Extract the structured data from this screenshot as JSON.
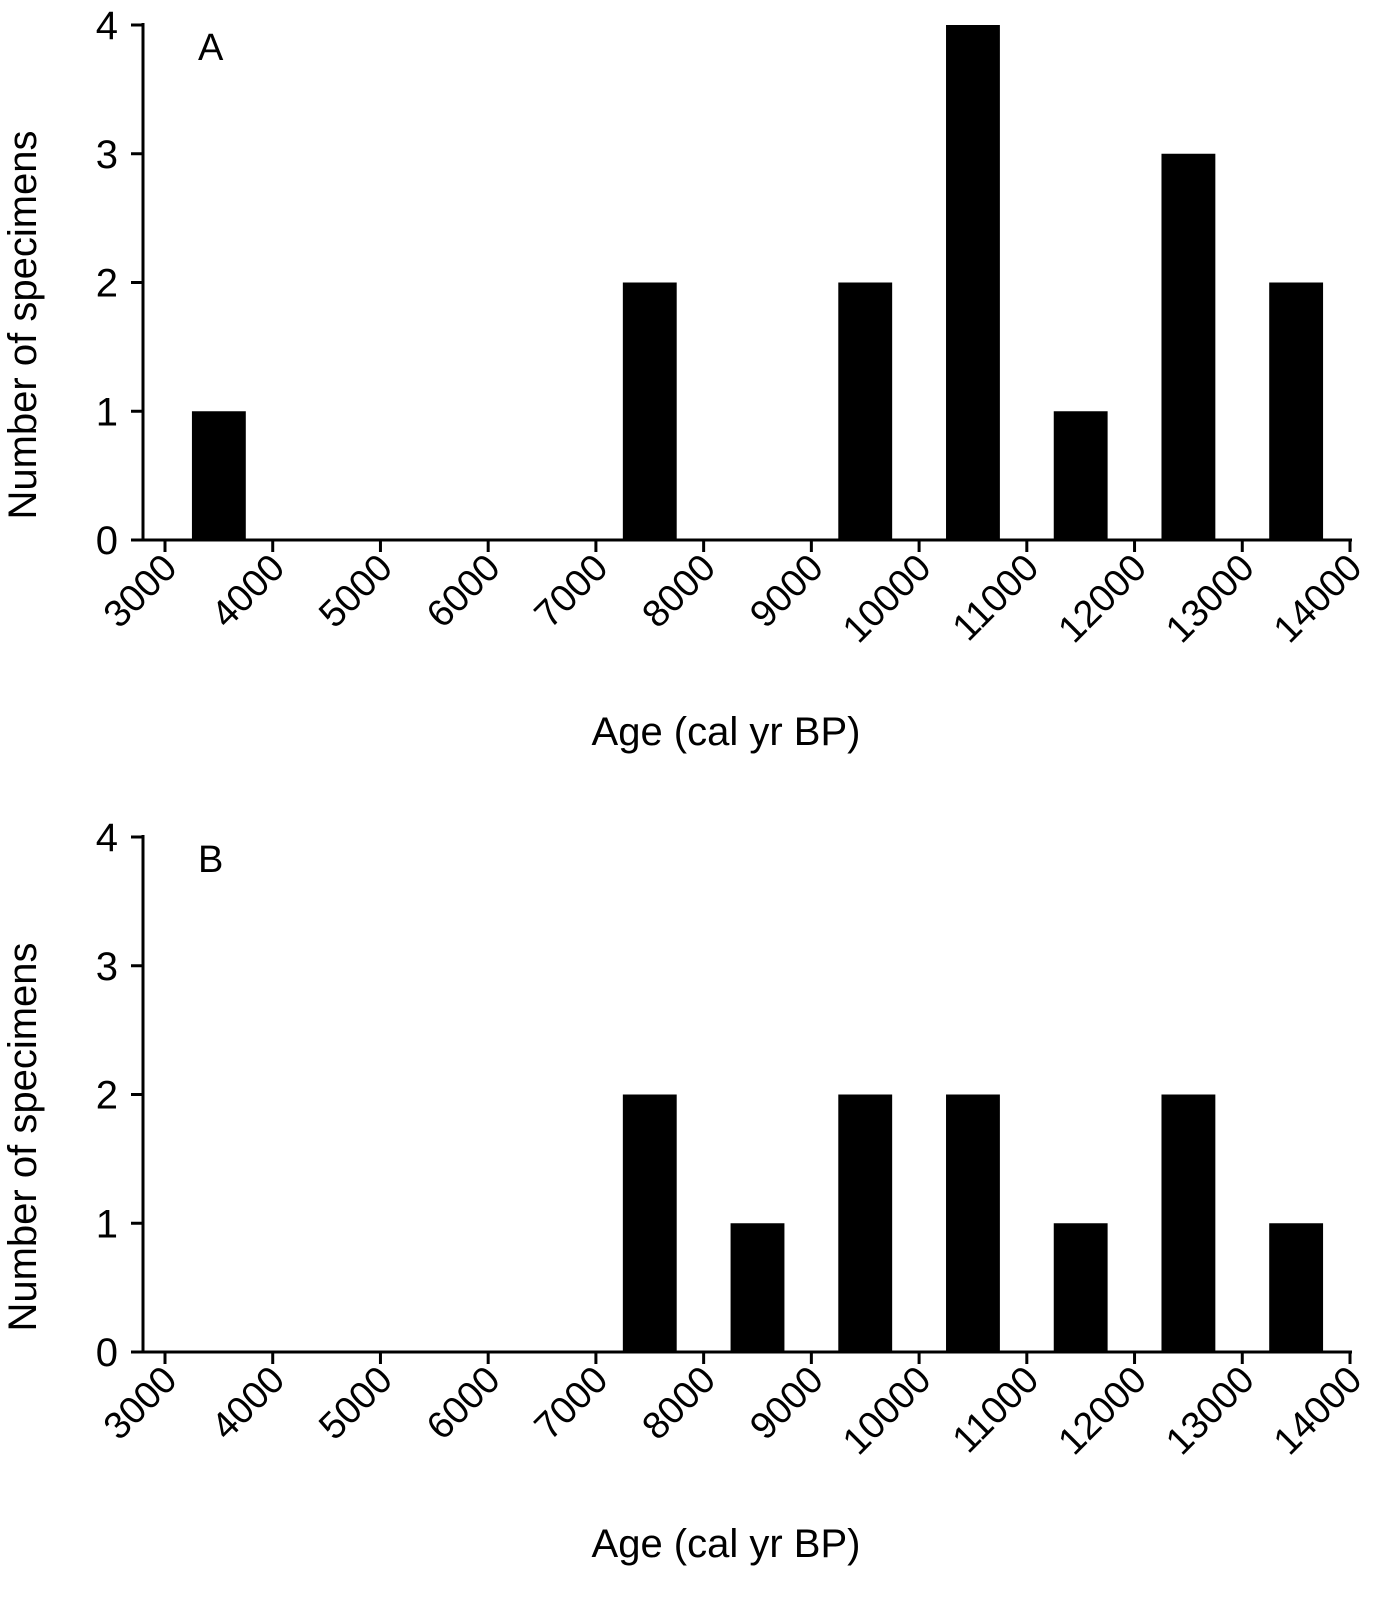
{
  "chart_data": [
    {
      "type": "histogram",
      "annotation": "A",
      "xlabel": "Age (cal yr BP)",
      "ylabel": "Number of specimens",
      "bins": [
        3000,
        4000,
        5000,
        6000,
        7000,
        8000,
        9000,
        10000,
        11000,
        12000,
        13000,
        14000
      ],
      "values": [
        1,
        0,
        0,
        0,
        2,
        0,
        2,
        4,
        1,
        3,
        2
      ],
      "color": "#000000",
      "xlim": [
        3000,
        14000
      ],
      "xticks": [
        3000,
        4000,
        5000,
        6000,
        7000,
        8000,
        9000,
        10000,
        11000,
        12000,
        13000,
        14000
      ],
      "ylim": [
        0,
        4
      ],
      "yticks": [
        0,
        1,
        2,
        3,
        4
      ]
    },
    {
      "type": "histogram",
      "annotation": "B",
      "xlabel": "Age (cal yr BP)",
      "ylabel": "Number of specimens",
      "bins": [
        3000,
        4000,
        5000,
        6000,
        7000,
        8000,
        9000,
        10000,
        11000,
        12000,
        13000,
        14000
      ],
      "values": [
        0,
        0,
        0,
        0,
        2,
        1,
        2,
        2,
        1,
        2,
        1
      ],
      "color": "#000000",
      "xlim": [
        3000,
        14000
      ],
      "xticks": [
        3000,
        4000,
        5000,
        6000,
        7000,
        8000,
        9000,
        10000,
        11000,
        12000,
        13000,
        14000
      ],
      "ylim": [
        0,
        4
      ],
      "yticks": [
        0,
        1,
        2,
        3,
        4
      ]
    }
  ]
}
